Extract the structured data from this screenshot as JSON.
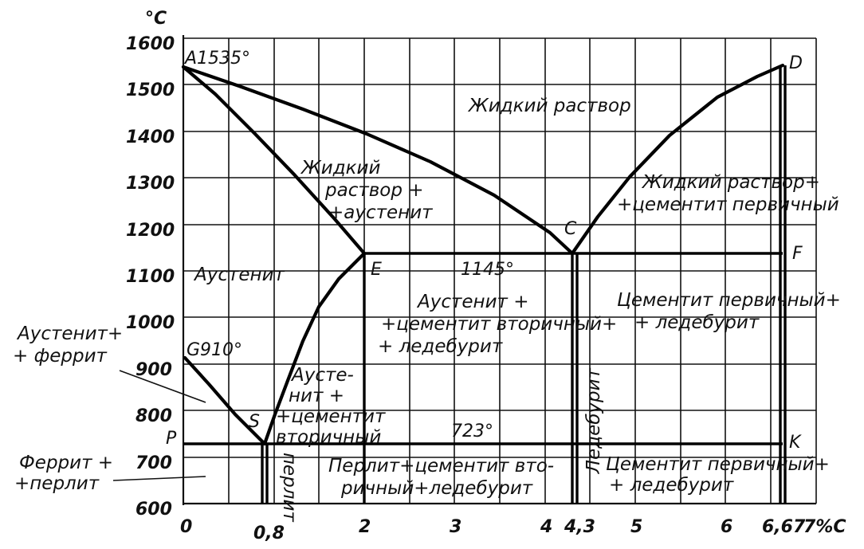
{
  "diagram": {
    "y_unit": "°C",
    "y_ticks": [
      "1600",
      "1500",
      "1400",
      "1300",
      "1200",
      "1100",
      "1000",
      "900",
      "800",
      "700",
      "600"
    ],
    "x_ticks": [
      "0",
      "0,8",
      "2",
      "3",
      "4",
      "4,3",
      "5",
      "6",
      "6,67",
      "7%C"
    ],
    "points": {
      "A": "A1535°",
      "D": "D",
      "C": "C",
      "E": "E",
      "E_temp": "1145°",
      "F": "F",
      "G": "G910°",
      "S": "S",
      "P": "P",
      "K": "K",
      "eutectoid_temp": "723°"
    },
    "regions": {
      "liquid": "Жидкий раствор",
      "liquid_austenite": [
        "Жидкий",
        "раствор +",
        "+аустенит"
      ],
      "liquid_cementite": [
        "Жидкий раствор+",
        "+цементит первичный"
      ],
      "austenite": "Аустенит",
      "austenite_cem_led": [
        "Аустенит +",
        "+цементит вторичный+",
        "+ ледебурит"
      ],
      "cem_primary_led_top": [
        "Цементит первичный+",
        "+ ледебурит"
      ],
      "austenite_ferrite": [
        "Аустенит+",
        "+ феррит"
      ],
      "austenite_cem_sec": [
        "Аусте-",
        "нит +",
        "+цементит",
        "вторичный"
      ],
      "ferrite_pearlite": [
        "Феррит +",
        "+перлит"
      ],
      "pearlite_vertical": "перлит",
      "ledeburite_vertical": "Ледебурит",
      "pearlite_cem_led": [
        "Перлит+цементит вто-",
        "ричный+ледебурит"
      ],
      "cem_primary_led_bottom": [
        "Цементит первичный+",
        "+ ледебурит"
      ]
    }
  }
}
